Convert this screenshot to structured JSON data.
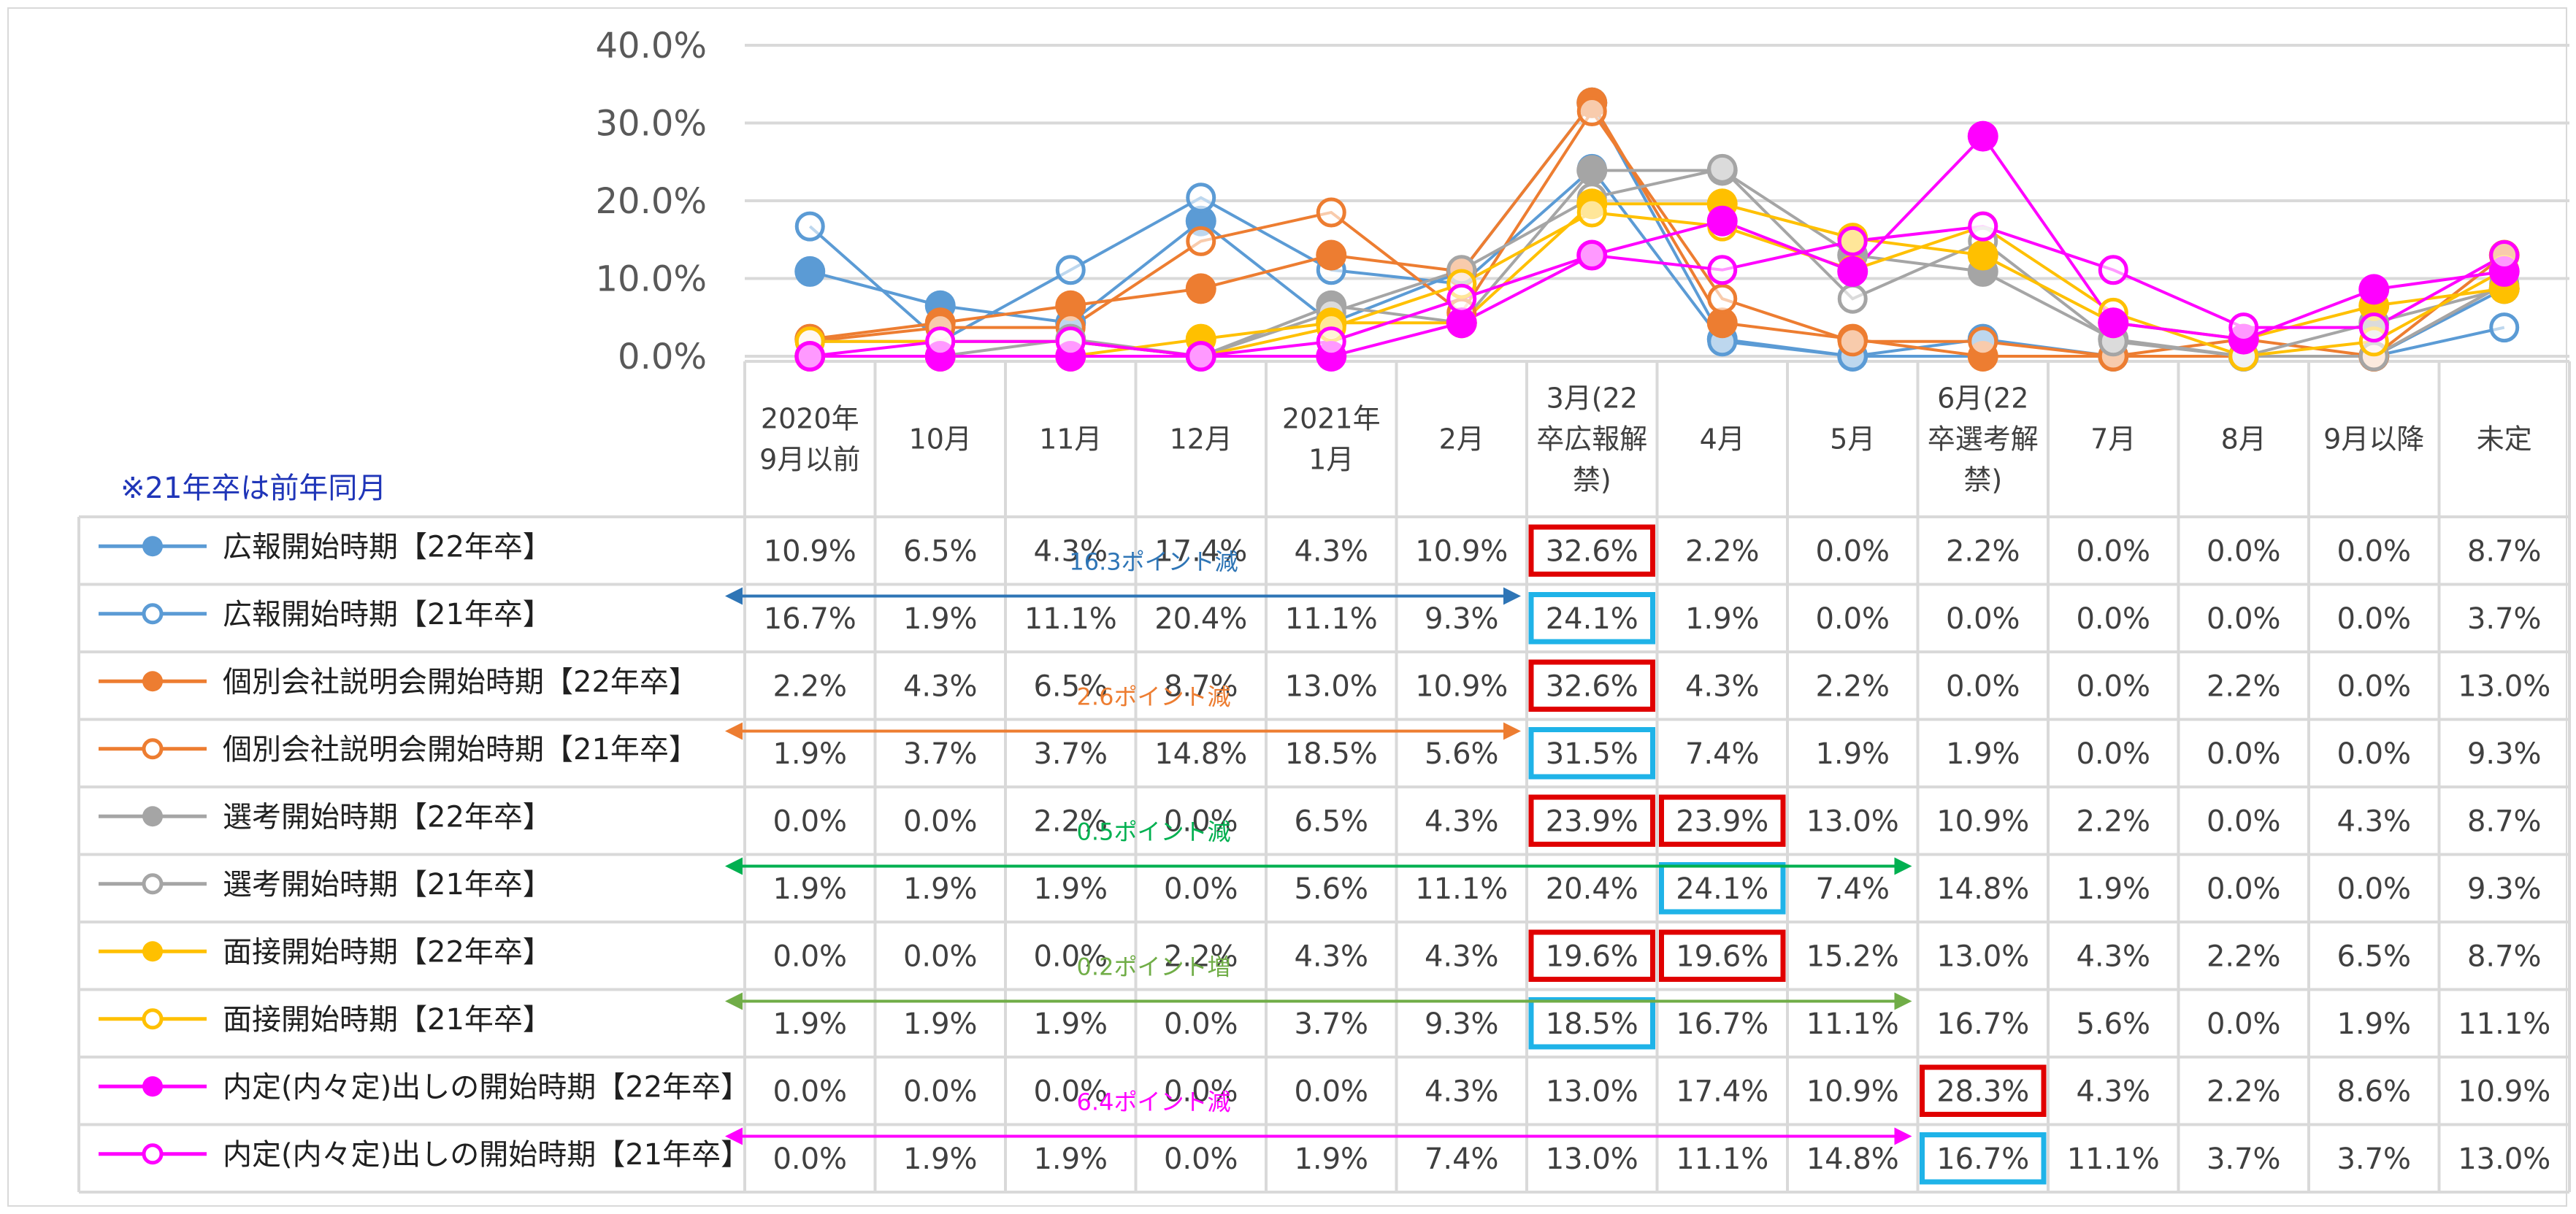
{
  "note": "※21年卒は前年同月",
  "colors": {
    "blue": "#5b9bd5",
    "orange": "#ed7d31",
    "gray": "#a5a5a5",
    "yellow": "#ffc000",
    "magenta": "#ff00ff",
    "highlight_red": "#e00000",
    "highlight_cyan": "#1fb3e8"
  },
  "annotations": [
    {
      "label": "16.3ポイント減",
      "color": "#2e75b6",
      "row": 1,
      "from": 0,
      "to": 6
    },
    {
      "label": "2.6ポイント減",
      "color": "#ed7d31",
      "row": 3,
      "from": 0,
      "to": 6
    },
    {
      "label": "0.5ポイント減",
      "color": "#00b050",
      "row": 5,
      "from": 0,
      "to": 9
    },
    {
      "label": "0.2ポイント増",
      "color": "#70ad47",
      "row": 7,
      "from": 0,
      "to": 9
    },
    {
      "label": "6.4ポイント減",
      "color": "#ff00ff",
      "row": 9,
      "from": 0,
      "to": 9
    }
  ],
  "highlights": [
    {
      "row": 0,
      "col": 6,
      "color": "red"
    },
    {
      "row": 1,
      "col": 6,
      "color": "cyan"
    },
    {
      "row": 2,
      "col": 6,
      "color": "red"
    },
    {
      "row": 3,
      "col": 6,
      "color": "cyan"
    },
    {
      "row": 4,
      "col": 6,
      "color": "red"
    },
    {
      "row": 4,
      "col": 7,
      "color": "red"
    },
    {
      "row": 5,
      "col": 7,
      "color": "cyan"
    },
    {
      "row": 6,
      "col": 6,
      "color": "red"
    },
    {
      "row": 6,
      "col": 7,
      "color": "red"
    },
    {
      "row": 7,
      "col": 6,
      "color": "cyan"
    },
    {
      "row": 8,
      "col": 9,
      "color": "red"
    },
    {
      "row": 9,
      "col": 9,
      "color": "cyan"
    }
  ],
  "chart_data": {
    "type": "line",
    "categories": [
      [
        "2020年",
        "9月以前"
      ],
      [
        "10月"
      ],
      [
        "11月"
      ],
      [
        "12月"
      ],
      [
        "2021年",
        "1月"
      ],
      [
        "2月"
      ],
      [
        "3月(22",
        "卒広報解",
        "禁)"
      ],
      [
        "4月"
      ],
      [
        "5月"
      ],
      [
        "6月(22",
        "卒選考解",
        "禁)"
      ],
      [
        "7月"
      ],
      [
        "8月"
      ],
      [
        "9月以降"
      ],
      [
        "未定"
      ]
    ],
    "y_ticks": [
      "40.0%",
      "30.0%",
      "20.0%",
      "10.0%",
      "0.0%"
    ],
    "ylim": [
      0,
      40
    ],
    "grid": true,
    "legend": "data table rows (left)",
    "series": [
      {
        "name": "広報開始時期【22年卒】",
        "color": "#5b9bd5",
        "filled": true,
        "values": [
          10.9,
          6.5,
          4.3,
          17.4,
          4.3,
          10.9,
          32.6,
          2.2,
          0.0,
          2.2,
          0.0,
          0.0,
          0.0,
          8.7
        ],
        "labels": [
          "10.9%",
          "6.5%",
          "4.3%",
          "17.4%",
          "4.3%",
          "10.9%",
          "32.6%",
          "2.2%",
          "0.0%",
          "2.2%",
          "0.0%",
          "0.0%",
          "0.0%",
          "8.7%"
        ]
      },
      {
        "name": "広報開始時期【21年卒】",
        "color": "#5b9bd5",
        "filled": false,
        "values": [
          16.7,
          1.9,
          11.1,
          20.4,
          11.1,
          9.3,
          24.1,
          1.9,
          0.0,
          0.0,
          0.0,
          0.0,
          0.0,
          3.7
        ],
        "labels": [
          "16.7%",
          "1.9%",
          "11.1%",
          "20.4%",
          "11.1%",
          "9.3%",
          "24.1%",
          "1.9%",
          "0.0%",
          "0.0%",
          "0.0%",
          "0.0%",
          "0.0%",
          "3.7%"
        ]
      },
      {
        "name": "個別会社説明会開始時期【22年卒】",
        "color": "#ed7d31",
        "filled": true,
        "values": [
          2.2,
          4.3,
          6.5,
          8.7,
          13.0,
          10.9,
          32.6,
          4.3,
          2.2,
          0.0,
          0.0,
          2.2,
          0.0,
          13.0
        ],
        "labels": [
          "2.2%",
          "4.3%",
          "6.5%",
          "8.7%",
          "13.0%",
          "10.9%",
          "32.6%",
          "4.3%",
          "2.2%",
          "0.0%",
          "0.0%",
          "2.2%",
          "0.0%",
          "13.0%"
        ]
      },
      {
        "name": "個別会社説明会開始時期【21年卒】",
        "color": "#ed7d31",
        "filled": false,
        "values": [
          1.9,
          3.7,
          3.7,
          14.8,
          18.5,
          5.6,
          31.5,
          7.4,
          1.9,
          1.9,
          0.0,
          0.0,
          0.0,
          9.3
        ],
        "labels": [
          "1.9%",
          "3.7%",
          "3.7%",
          "14.8%",
          "18.5%",
          "5.6%",
          "31.5%",
          "7.4%",
          "1.9%",
          "1.9%",
          "0.0%",
          "0.0%",
          "0.0%",
          "9.3%"
        ]
      },
      {
        "name": "選考開始時期【22年卒】",
        "color": "#a5a5a5",
        "filled": true,
        "values": [
          0.0,
          0.0,
          2.2,
          0.0,
          6.5,
          4.3,
          23.9,
          23.9,
          13.0,
          10.9,
          2.2,
          0.0,
          4.3,
          8.7
        ],
        "labels": [
          "0.0%",
          "0.0%",
          "2.2%",
          "0.0%",
          "6.5%",
          "4.3%",
          "23.9%",
          "23.9%",
          "13.0%",
          "10.9%",
          "2.2%",
          "0.0%",
          "4.3%",
          "8.7%"
        ]
      },
      {
        "name": "選考開始時期【21年卒】",
        "color": "#a5a5a5",
        "filled": false,
        "values": [
          1.9,
          1.9,
          1.9,
          0.0,
          5.6,
          11.1,
          20.4,
          24.1,
          7.4,
          14.8,
          1.9,
          0.0,
          0.0,
          9.3
        ],
        "labels": [
          "1.9%",
          "1.9%",
          "1.9%",
          "0.0%",
          "5.6%",
          "11.1%",
          "20.4%",
          "24.1%",
          "7.4%",
          "14.8%",
          "1.9%",
          "0.0%",
          "0.0%",
          "9.3%"
        ]
      },
      {
        "name": "面接開始時期【22年卒】",
        "color": "#ffc000",
        "filled": true,
        "values": [
          0.0,
          0.0,
          0.0,
          2.2,
          4.3,
          4.3,
          19.6,
          19.6,
          15.2,
          13.0,
          4.3,
          2.2,
          6.5,
          8.7
        ],
        "labels": [
          "0.0%",
          "0.0%",
          "0.0%",
          "2.2%",
          "4.3%",
          "4.3%",
          "19.6%",
          "19.6%",
          "15.2%",
          "13.0%",
          "4.3%",
          "2.2%",
          "6.5%",
          "8.7%"
        ]
      },
      {
        "name": "面接開始時期【21年卒】",
        "color": "#ffc000",
        "filled": false,
        "values": [
          1.9,
          1.9,
          1.9,
          0.0,
          3.7,
          9.3,
          18.5,
          16.7,
          11.1,
          16.7,
          5.6,
          0.0,
          1.9,
          11.1
        ],
        "labels": [
          "1.9%",
          "1.9%",
          "1.9%",
          "0.0%",
          "3.7%",
          "9.3%",
          "18.5%",
          "16.7%",
          "11.1%",
          "16.7%",
          "5.6%",
          "0.0%",
          "1.9%",
          "11.1%"
        ]
      },
      {
        "name": "内定(内々定)出しの開始時期【22年卒】",
        "color": "#ff00ff",
        "filled": true,
        "values": [
          0.0,
          0.0,
          0.0,
          0.0,
          0.0,
          4.3,
          13.0,
          17.4,
          10.9,
          28.3,
          4.3,
          2.2,
          8.6,
          10.9
        ],
        "labels": [
          "0.0%",
          "0.0%",
          "0.0%",
          "0.0%",
          "0.0%",
          "4.3%",
          "13.0%",
          "17.4%",
          "10.9%",
          "28.3%",
          "4.3%",
          "2.2%",
          "8.6%",
          "10.9%"
        ]
      },
      {
        "name": "内定(内々定)出しの開始時期【21年卒】",
        "color": "#ff00ff",
        "filled": false,
        "values": [
          0.0,
          1.9,
          1.9,
          0.0,
          1.9,
          7.4,
          13.0,
          11.1,
          14.8,
          16.7,
          11.1,
          3.7,
          3.7,
          13.0
        ],
        "labels": [
          "0.0%",
          "1.9%",
          "1.9%",
          "0.0%",
          "1.9%",
          "7.4%",
          "13.0%",
          "11.1%",
          "14.8%",
          "16.7%",
          "11.1%",
          "3.7%",
          "3.7%",
          "13.0%"
        ]
      }
    ]
  }
}
